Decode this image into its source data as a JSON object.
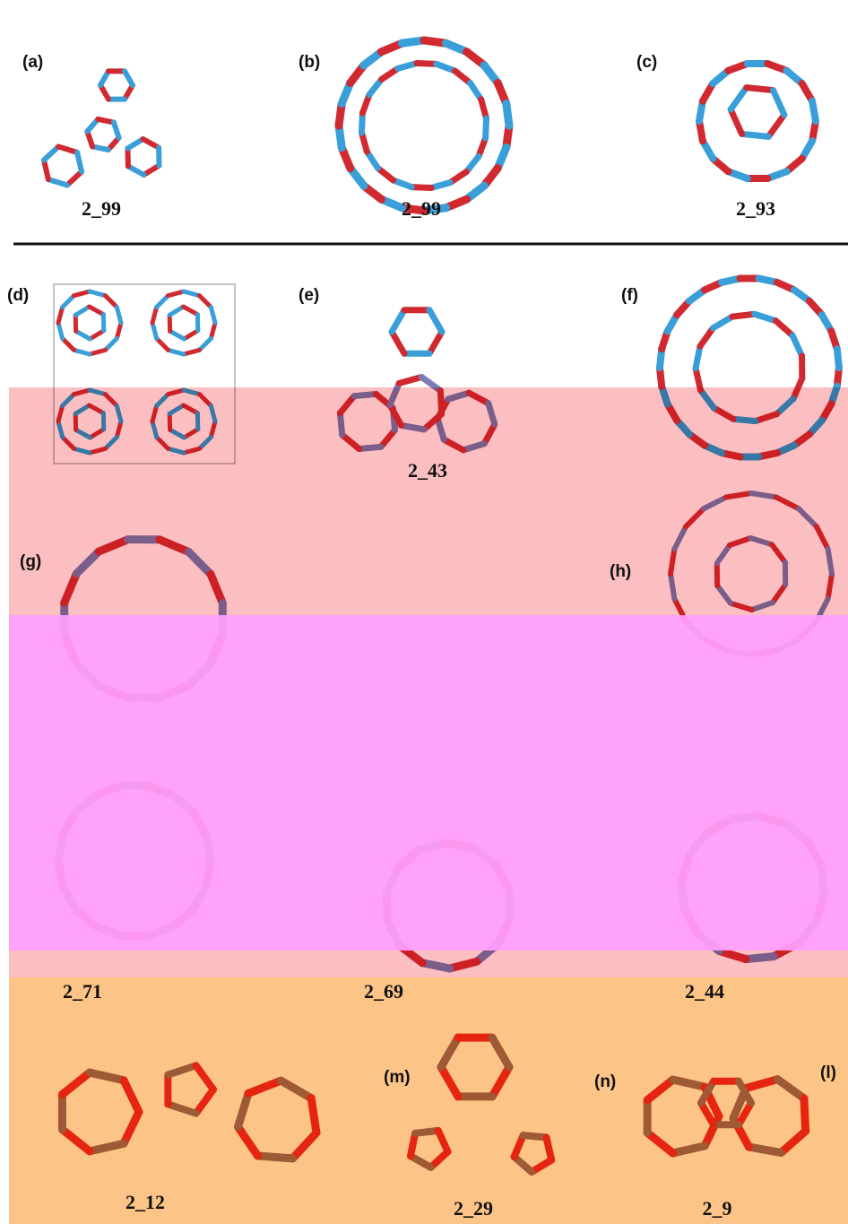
{
  "panels": [
    {
      "label": "(a)",
      "caption": "2_99"
    },
    {
      "label": "(b)",
      "caption": "2_99"
    },
    {
      "label": "(c)",
      "caption": "2_93"
    },
    {
      "label": "(d)"
    },
    {
      "label": "(e)",
      "caption": "2_43"
    },
    {
      "label": "(f)"
    },
    {
      "label": "(g)"
    },
    {
      "label": "(h)"
    },
    {
      "caption": "2_71"
    },
    {
      "caption": "2_69"
    },
    {
      "caption": "2_44"
    },
    {
      "caption": "2_12"
    },
    {
      "label": "(m)",
      "caption": "2_29"
    },
    {
      "label": "(n)",
      "caption": "2_9"
    },
    {
      "label": "(l)"
    }
  ]
}
